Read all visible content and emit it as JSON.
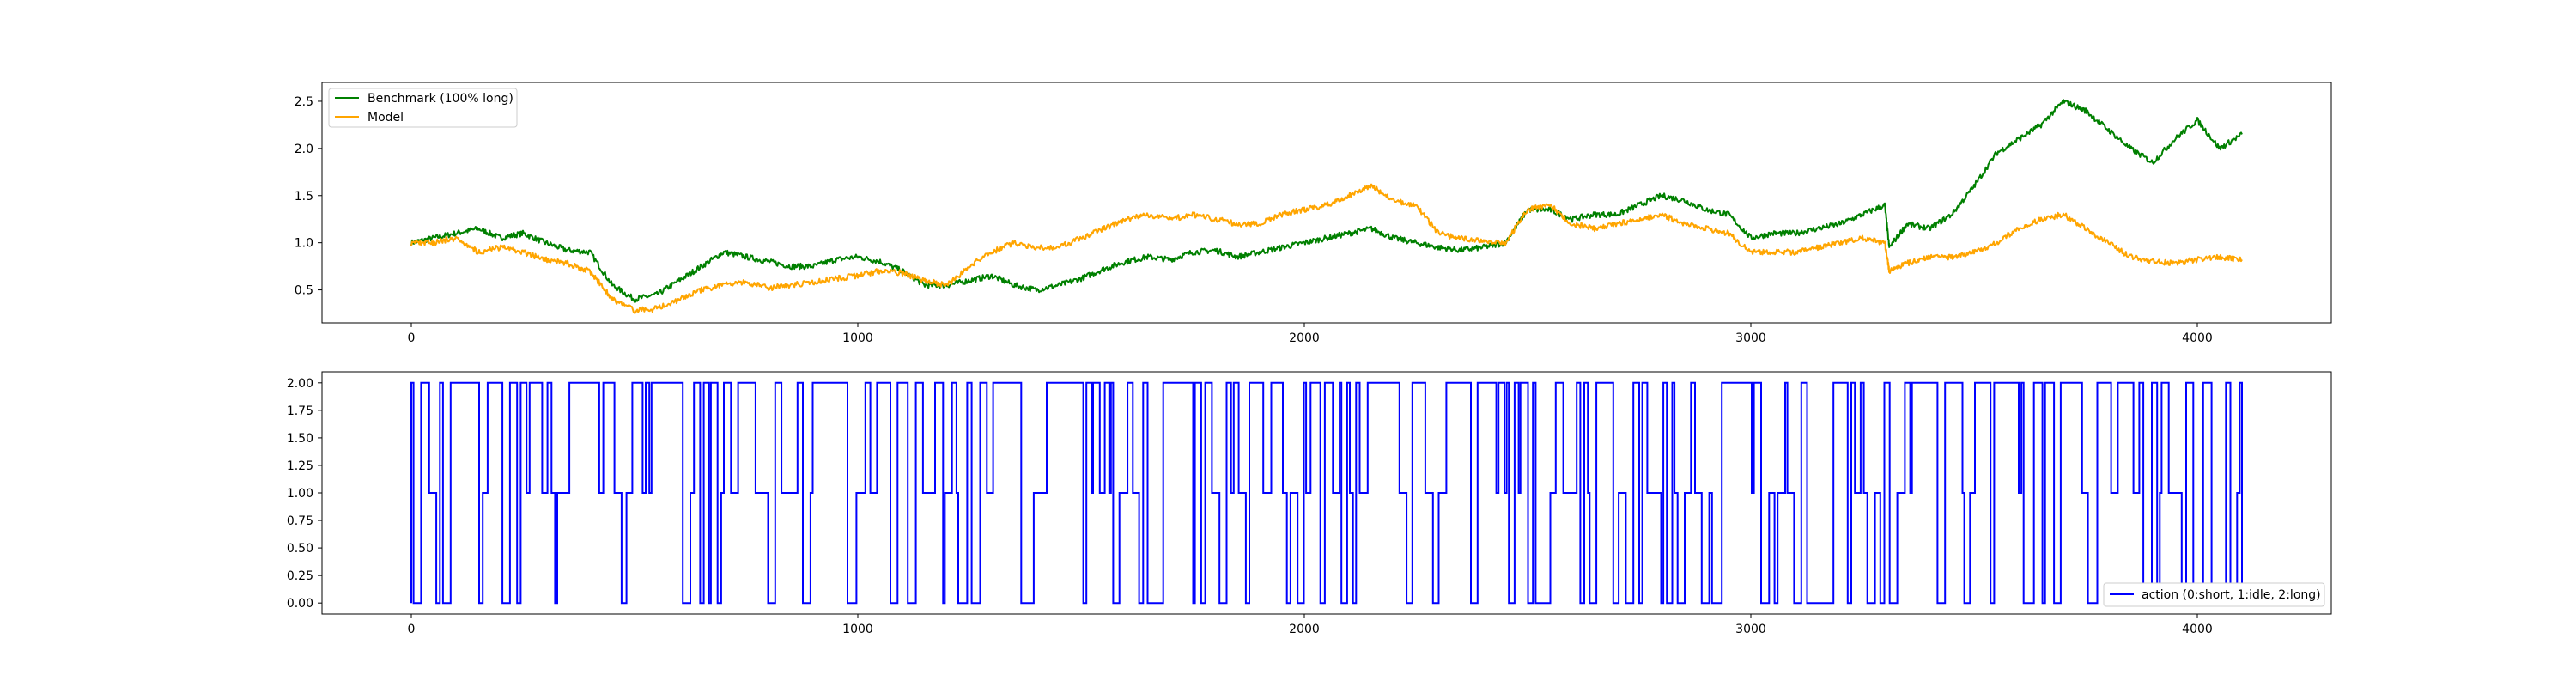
{
  "chart_data": [
    {
      "type": "line",
      "title": "",
      "xlabel": "",
      "ylabel": "",
      "xlim": [
        -200,
        4300
      ],
      "ylim": [
        0.15,
        2.7
      ],
      "xticks": [
        0,
        1000,
        2000,
        3000,
        4000
      ],
      "xtick_labels": [
        "0",
        "1000",
        "2000",
        "3000",
        "4000"
      ],
      "yticks": [
        0.5,
        1.0,
        1.5,
        2.0,
        2.5
      ],
      "ytick_labels": [
        "0.5",
        "1.0",
        "1.5",
        "2.0",
        "2.5"
      ],
      "grid": false,
      "legend_position": "top-left",
      "series": [
        {
          "name": "Benchmark (100% long)",
          "color": "#008000",
          "x": [
            0,
            50,
            100,
            150,
            200,
            250,
            300,
            350,
            400,
            450,
            500,
            550,
            600,
            650,
            700,
            750,
            800,
            850,
            900,
            950,
            1000,
            1050,
            1100,
            1150,
            1200,
            1250,
            1300,
            1350,
            1400,
            1450,
            1500,
            1550,
            1600,
            1650,
            1700,
            1750,
            1800,
            1850,
            1900,
            1950,
            2000,
            2050,
            2100,
            2150,
            2200,
            2250,
            2300,
            2350,
            2400,
            2450,
            2500,
            2550,
            2600,
            2650,
            2700,
            2750,
            2800,
            2850,
            2900,
            2950,
            3000,
            3050,
            3100,
            3150,
            3200,
            3250,
            3300,
            3310,
            3350,
            3400,
            3450,
            3500,
            3550,
            3600,
            3650,
            3700,
            3750,
            3800,
            3850,
            3900,
            3950,
            4000,
            4050,
            4100
          ],
          "values": [
            1.0,
            1.05,
            1.1,
            1.15,
            1.05,
            1.1,
            1.0,
            0.92,
            0.9,
            0.55,
            0.4,
            0.45,
            0.6,
            0.75,
            0.9,
            0.85,
            0.8,
            0.75,
            0.75,
            0.82,
            0.85,
            0.8,
            0.7,
            0.55,
            0.55,
            0.6,
            0.65,
            0.55,
            0.5,
            0.55,
            0.62,
            0.72,
            0.8,
            0.85,
            0.82,
            0.9,
            0.92,
            0.85,
            0.9,
            0.95,
            1.0,
            1.05,
            1.1,
            1.15,
            1.05,
            1.0,
            0.95,
            0.92,
            0.95,
            1.0,
            1.35,
            1.35,
            1.25,
            1.3,
            1.3,
            1.4,
            1.5,
            1.45,
            1.35,
            1.3,
            1.05,
            1.1,
            1.1,
            1.15,
            1.2,
            1.3,
            1.4,
            0.95,
            1.2,
            1.15,
            1.3,
            1.6,
            1.95,
            2.1,
            2.25,
            2.5,
            2.4,
            2.2,
            2.0,
            1.85,
            2.1,
            2.3,
            2.0,
            2.15
          ]
        },
        {
          "name": "Model",
          "color": "#FFA500",
          "x": [
            0,
            50,
            100,
            150,
            200,
            250,
            300,
            350,
            400,
            450,
            500,
            550,
            600,
            650,
            700,
            750,
            800,
            850,
            900,
            950,
            1000,
            1050,
            1100,
            1150,
            1200,
            1250,
            1300,
            1350,
            1400,
            1450,
            1500,
            1550,
            1600,
            1650,
            1700,
            1750,
            1800,
            1850,
            1900,
            1950,
            2000,
            2050,
            2100,
            2150,
            2200,
            2250,
            2300,
            2350,
            2400,
            2450,
            2500,
            2550,
            2600,
            2650,
            2700,
            2750,
            2800,
            2850,
            2900,
            2950,
            3000,
            3050,
            3100,
            3150,
            3200,
            3250,
            3300,
            3310,
            3350,
            3400,
            3450,
            3500,
            3550,
            3600,
            3650,
            3700,
            3750,
            3800,
            3850,
            3900,
            3950,
            4000,
            4050,
            4100
          ],
          "values": [
            1.0,
            1.0,
            1.05,
            0.9,
            0.95,
            0.9,
            0.82,
            0.78,
            0.7,
            0.4,
            0.28,
            0.3,
            0.4,
            0.5,
            0.55,
            0.58,
            0.52,
            0.55,
            0.58,
            0.62,
            0.65,
            0.7,
            0.68,
            0.6,
            0.55,
            0.75,
            0.9,
            1.0,
            0.95,
            0.95,
            1.05,
            1.15,
            1.25,
            1.3,
            1.25,
            1.3,
            1.25,
            1.2,
            1.2,
            1.3,
            1.35,
            1.4,
            1.5,
            1.6,
            1.45,
            1.4,
            1.1,
            1.05,
            1.02,
            1.0,
            1.35,
            1.4,
            1.2,
            1.15,
            1.2,
            1.25,
            1.3,
            1.2,
            1.15,
            1.1,
            0.9,
            0.9,
            0.9,
            0.95,
            1.0,
            1.05,
            1.0,
            0.7,
            0.78,
            0.85,
            0.85,
            0.9,
            1.0,
            1.15,
            1.25,
            1.3,
            1.15,
            1.0,
            0.85,
            0.8,
            0.78,
            0.82,
            0.85,
            0.82
          ]
        }
      ]
    },
    {
      "type": "line",
      "title": "",
      "xlabel": "",
      "ylabel": "",
      "xlim": [
        -200,
        4300
      ],
      "ylim": [
        -0.1,
        2.1
      ],
      "xticks": [
        0,
        1000,
        2000,
        3000,
        4000
      ],
      "xtick_labels": [
        "0",
        "1000",
        "2000",
        "3000",
        "4000"
      ],
      "yticks": [
        0.0,
        0.25,
        0.5,
        0.75,
        1.0,
        1.25,
        1.5,
        1.75,
        2.0
      ],
      "ytick_labels": [
        "0.00",
        "0.25",
        "0.50",
        "0.75",
        "1.00",
        "1.25",
        "1.50",
        "1.75",
        "2.00"
      ],
      "grid": false,
      "legend_position": "bottom-right",
      "series": [
        {
          "name": "action (0:short, 1:idle, 2:long)",
          "color": "#0000FF",
          "x_range": [
            0,
            4100
          ],
          "value_levels": [
            0,
            1,
            2
          ]
        }
      ]
    }
  ]
}
